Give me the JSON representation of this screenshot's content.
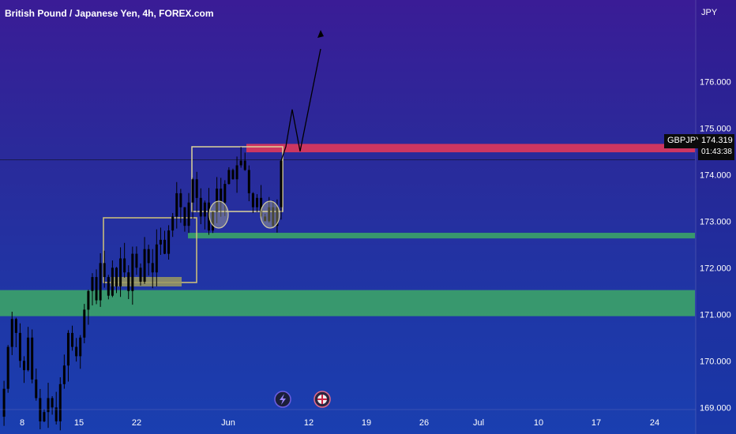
{
  "title": "British Pound / Japanese Yen, 4h, FOREX.com",
  "currency_label": "JPY",
  "symbol_tag": "GBPJPY",
  "price_tag": "174.319",
  "countdown": "01:43:38",
  "colors": {
    "bg_top": "#3a1c96",
    "bg_bottom": "#1a3fb0",
    "candle": "#000000",
    "resistance_zone": "#d6375e",
    "support_zone": "#3a9e6a",
    "box_outline": "#d2c47a",
    "box_fill": "#9a9a60"
  },
  "chart_data": {
    "type": "candlestick",
    "title": "British Pound / Japanese Yen, 4h, FOREX.com",
    "symbol": "GBPJPY",
    "interval": "4h",
    "source": "FOREX.com",
    "y_unit": "JPY",
    "ylim": [
      168.6,
      177.2
    ],
    "y_ticks": [
      "169.000",
      "170.000",
      "171.000",
      "172.000",
      "173.000",
      "174.000",
      "175.000",
      "176.000"
    ],
    "x_ticks": [
      "8",
      "15",
      "22",
      "Jun",
      "12",
      "19",
      "26",
      "Jul",
      "10",
      "17",
      "24"
    ],
    "last_price": 174.319,
    "time_to_close": "01:43:38",
    "close_path": [
      168.8,
      169.4,
      170.3,
      170.9,
      170.6,
      170.0,
      169.8,
      170.5,
      169.6,
      169.2,
      168.7,
      168.9,
      169.2,
      169.0,
      168.7,
      169.5,
      169.9,
      170.6,
      170.3,
      170.1,
      170.5,
      171.1,
      171.5,
      171.8,
      171.3,
      172.1,
      171.8,
      171.4,
      172.0,
      171.6,
      172.2,
      171.9,
      171.5,
      172.3,
      172.0,
      171.7,
      172.4,
      172.1,
      171.9,
      172.5,
      172.6,
      172.3,
      172.8,
      173.1,
      173.6,
      173.3,
      172.9,
      173.4,
      173.9,
      173.5,
      173.1,
      173.4,
      172.8,
      173.2,
      173.7,
      173.4,
      173.8,
      174.1,
      173.9,
      174.2,
      174.3,
      174.1,
      173.6,
      173.3,
      173.5,
      173.1,
      173.0,
      173.3,
      172.9,
      173.3,
      174.3
    ],
    "zones": [
      {
        "kind": "resistance",
        "y_low": 174.48,
        "y_high": 174.66
      },
      {
        "kind": "support",
        "y_low": 172.63,
        "y_high": 172.75
      },
      {
        "kind": "support",
        "y_low": 170.96,
        "y_high": 171.52
      }
    ],
    "projection": [
      174.3,
      174.6,
      175.4,
      174.5,
      176.7
    ],
    "ellipses": 2
  },
  "bottom_icons": [
    "lightning-icon",
    "flag-uk-icon"
  ]
}
